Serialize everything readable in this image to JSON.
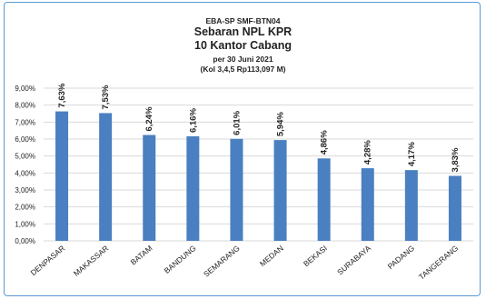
{
  "chart_data": {
    "type": "bar",
    "title_lines": [
      "EBA-SP SMF-BTN04",
      "Sebaran NPL KPR",
      "10 Kantor Cabang",
      "per 30 Juni 2021",
      "(Kol 3,4,5 Rp113,097 M)"
    ],
    "categories": [
      "DENPASAR",
      "MAKASSAR",
      "BATAM",
      "BANDUNG",
      "SEMARANG",
      "MEDAN",
      "BEKASI",
      "SURABAYA",
      "PADANG",
      "TANGERANG"
    ],
    "values": [
      7.63,
      7.53,
      6.24,
      6.16,
      6.01,
      5.94,
      4.86,
      4.28,
      4.17,
      3.83
    ],
    "data_labels": [
      "7,63%",
      "7,53%",
      "6,24%",
      "6,16%",
      "6,01%",
      "5,94%",
      "4,86%",
      "4,28%",
      "4,17%",
      "3,83%"
    ],
    "y_ticks": [
      0,
      1,
      2,
      3,
      4,
      5,
      6,
      7,
      8,
      9
    ],
    "y_tick_labels": [
      "0,00%",
      "1,00%",
      "2,00%",
      "3,00%",
      "4,00%",
      "5,00%",
      "6,00%",
      "7,00%",
      "8,00%",
      "9,00%"
    ],
    "ylim": [
      0,
      9
    ],
    "xlabel": "",
    "ylabel": "",
    "grid": true,
    "legend": "none",
    "colors": {
      "bar": "#4a7fc1",
      "grid": "#d9d9d9",
      "frame": "#5b9bd5",
      "text": "#222222"
    }
  }
}
